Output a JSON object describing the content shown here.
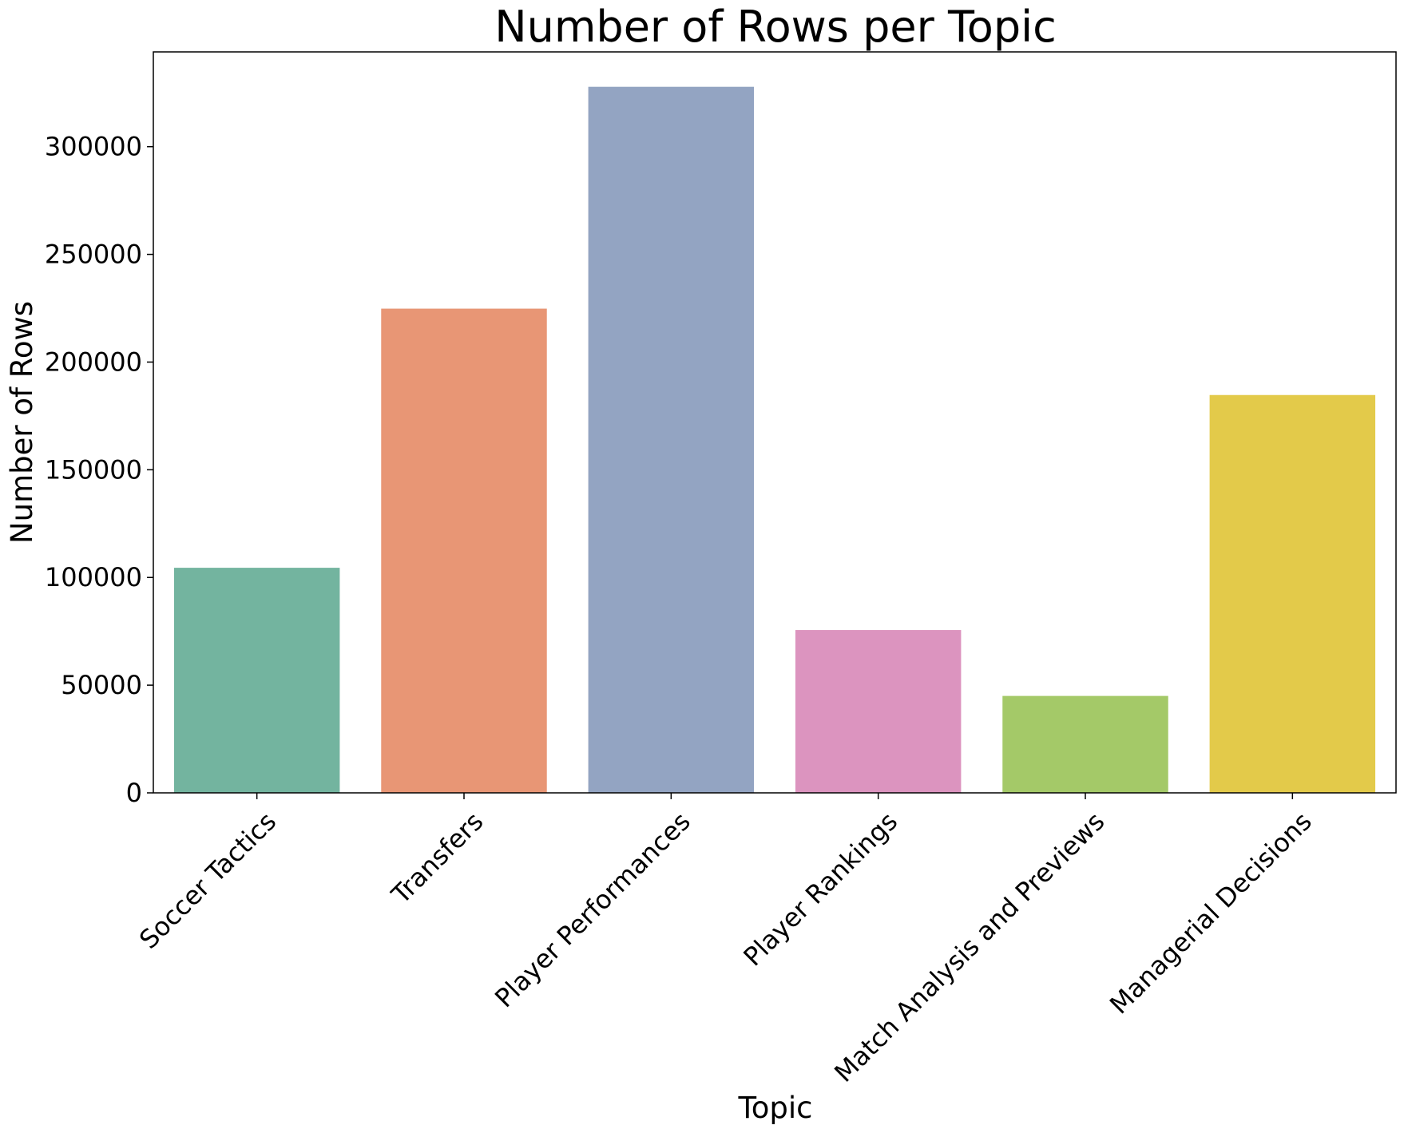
{
  "chart_data": {
    "type": "bar",
    "title": "Number of Rows per Topic",
    "xlabel": "Topic",
    "ylabel": "Number of Rows",
    "categories": [
      "Soccer Tactics",
      "Transfers",
      "Player Performances",
      "Player Rankings",
      "Match Analysis and Previews",
      "Managerial Decisions"
    ],
    "values": [
      104500,
      224800,
      327800,
      75600,
      45000,
      184700
    ],
    "colors": [
      "#73b49f",
      "#e89675",
      "#93a4c2",
      "#dc94bf",
      "#a4c968",
      "#e3ca4a"
    ],
    "yticks": [
      0,
      50000,
      100000,
      150000,
      200000,
      250000,
      300000
    ],
    "ytick_labels": [
      "0",
      "50000",
      "100000",
      "150000",
      "200000",
      "250000",
      "300000"
    ],
    "ylim": [
      0,
      344000
    ],
    "grid": false,
    "legend": "none",
    "xtick_rotation": -45
  }
}
